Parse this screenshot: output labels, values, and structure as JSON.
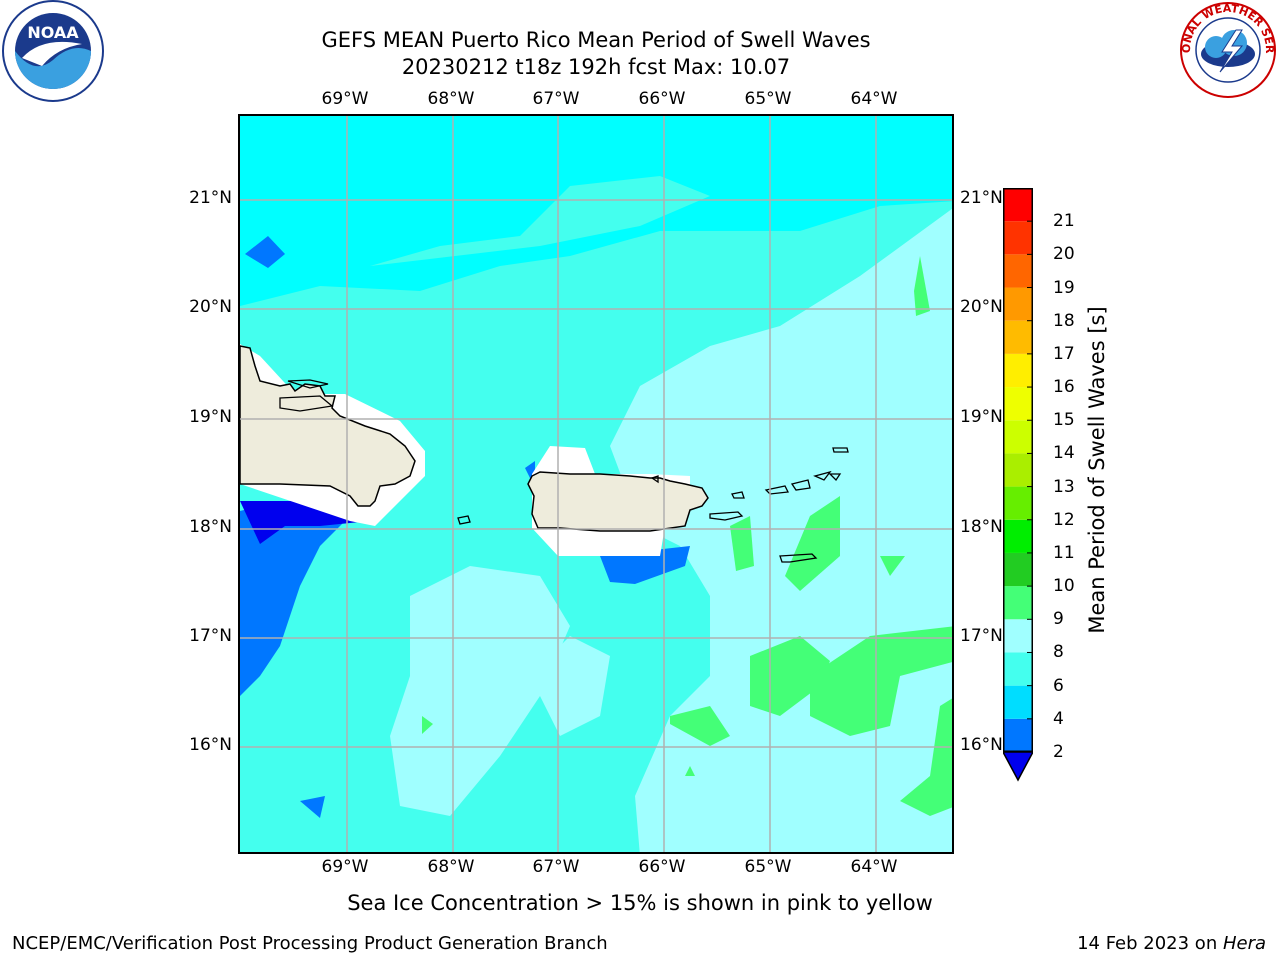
{
  "title": {
    "line1": "GEFS MEAN Puerto Rico Mean Period of Swell Waves",
    "line2": "20230212 t18z 192h fcst   Max: 10.07"
  },
  "axes": {
    "lon_labels": [
      "69°W",
      "68°W",
      "67°W",
      "66°W",
      "65°W",
      "64°W"
    ],
    "lat_labels": [
      "21°N",
      "20°N",
      "19°N",
      "18°N",
      "17°N",
      "16°N"
    ],
    "lon_range": [
      -70.0,
      -63.25
    ],
    "lat_range": [
      15.0,
      21.75
    ],
    "grid": true
  },
  "colorbar": {
    "title": "Mean Period of Swell Waves [s]",
    "levels": [
      "2",
      "4",
      "6",
      "8",
      "9",
      "10",
      "11",
      "12",
      "13",
      "14",
      "15",
      "16",
      "17",
      "18",
      "19",
      "20",
      "21"
    ],
    "colors": [
      "#0077ff",
      "#00ddff",
      "#44ffee",
      "#a0ffff",
      "#44ff77",
      "#22cc22",
      "#00ee00",
      "#66ee00",
      "#aaee00",
      "#ccff00",
      "#eeff00",
      "#ffee00",
      "#ffbb00",
      "#ff9900",
      "#ff6600",
      "#ff3300",
      "#ff0000"
    ],
    "under_color": "#0000ee"
  },
  "caption": "Sea Ice Concentration > 15% is shown in pink to yellow",
  "footer": {
    "left": "NCEP/EMC/Verification Post Processing Product Generation Branch",
    "right_date": "14 Feb 2023 on ",
    "right_host": "Hera"
  },
  "logos": {
    "left": "noaa-logo",
    "right": "nws-logo",
    "right_text": "NATIONAL WEATHER SERVICE"
  },
  "colors": {
    "land": "#eeecdc",
    "mask": "#ffffff",
    "grid": "#b0b0b0",
    "coast": "#000000"
  }
}
